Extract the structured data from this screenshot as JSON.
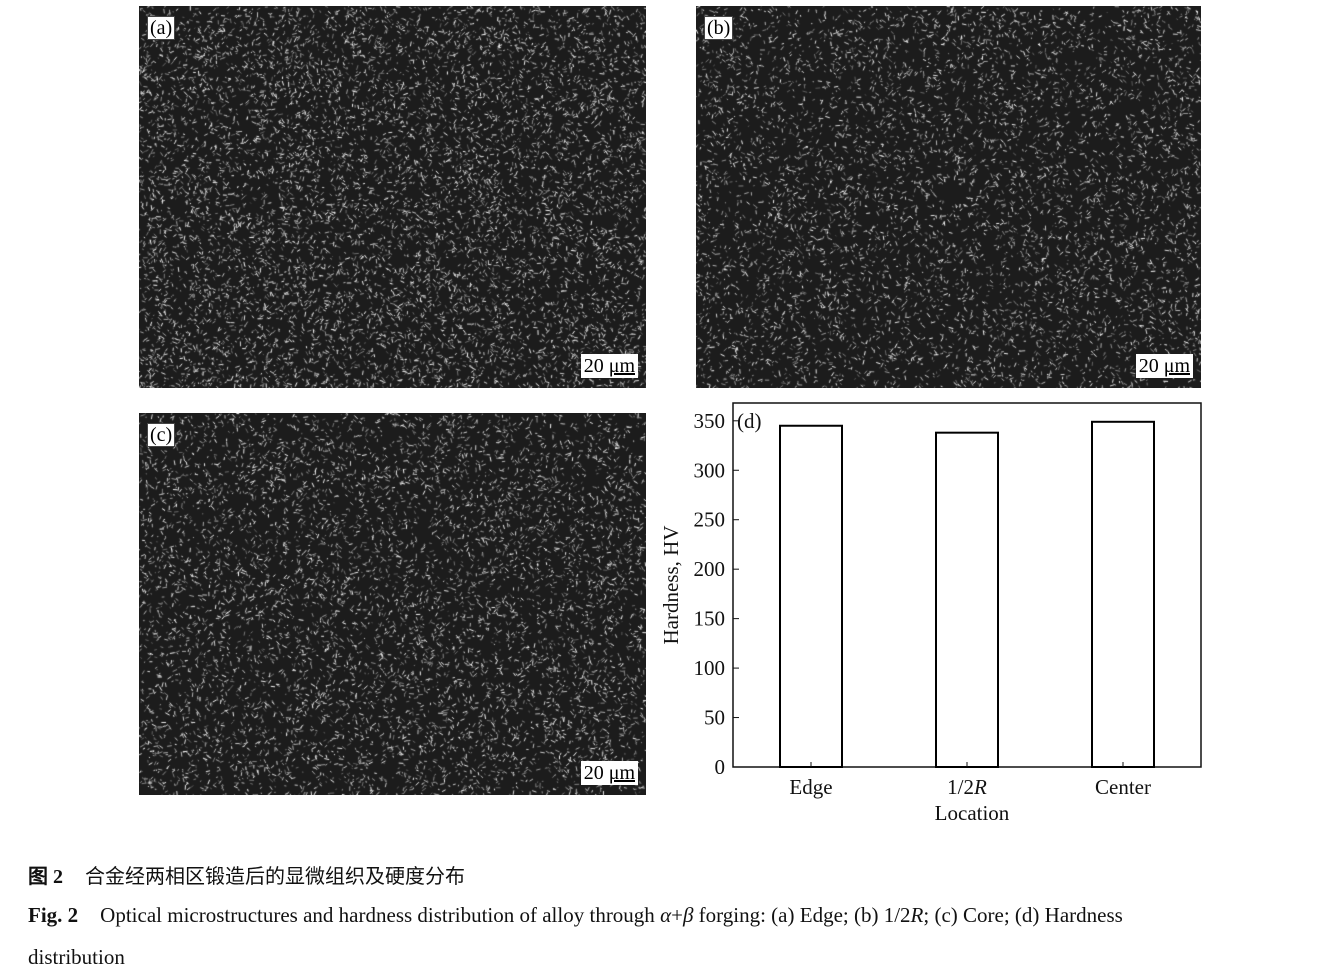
{
  "panels": [
    {
      "label": "(a)",
      "scale_bar": "20 μm",
      "scale_num": "20",
      "scale_unit": "μm",
      "density": 0.55
    },
    {
      "label": "(b)",
      "scale_bar": "20 μm",
      "scale_num": "20",
      "scale_unit": "μm",
      "density": 0.4
    },
    {
      "label": "(c)",
      "scale_bar": "20 μm",
      "scale_num": "20",
      "scale_unit": "μm",
      "density": 0.45
    }
  ],
  "chart_data": {
    "type": "bar",
    "panel_label": "(d)",
    "categories": [
      "Edge",
      "1/2R",
      "Center"
    ],
    "values": [
      345,
      338,
      349
    ],
    "xlabel": "Location",
    "ylabel": "Hardness, HV",
    "ylim": [
      0,
      368
    ],
    "yticks": [
      0,
      50,
      100,
      150,
      200,
      250,
      300,
      350
    ],
    "bar_fill": "#ffffff",
    "bar_stroke": "#000000",
    "grid": false,
    "legend": "none"
  },
  "caption": {
    "cn_label": "图 2",
    "cn_text": "合金经两相区锻造后的显微组织及硬度分布",
    "en_label": "Fig. 2",
    "en_text_1": "Optical microstructures and hardness distribution of alloy through ",
    "en_alpha": "α",
    "en_plus": "+",
    "en_beta": "β",
    "en_text_2": " forging: (a) Edge; (b) 1/2",
    "en_R": "R",
    "en_text_3": "; (c) Core; (d) Hardness",
    "en_text_4": "distribution"
  }
}
